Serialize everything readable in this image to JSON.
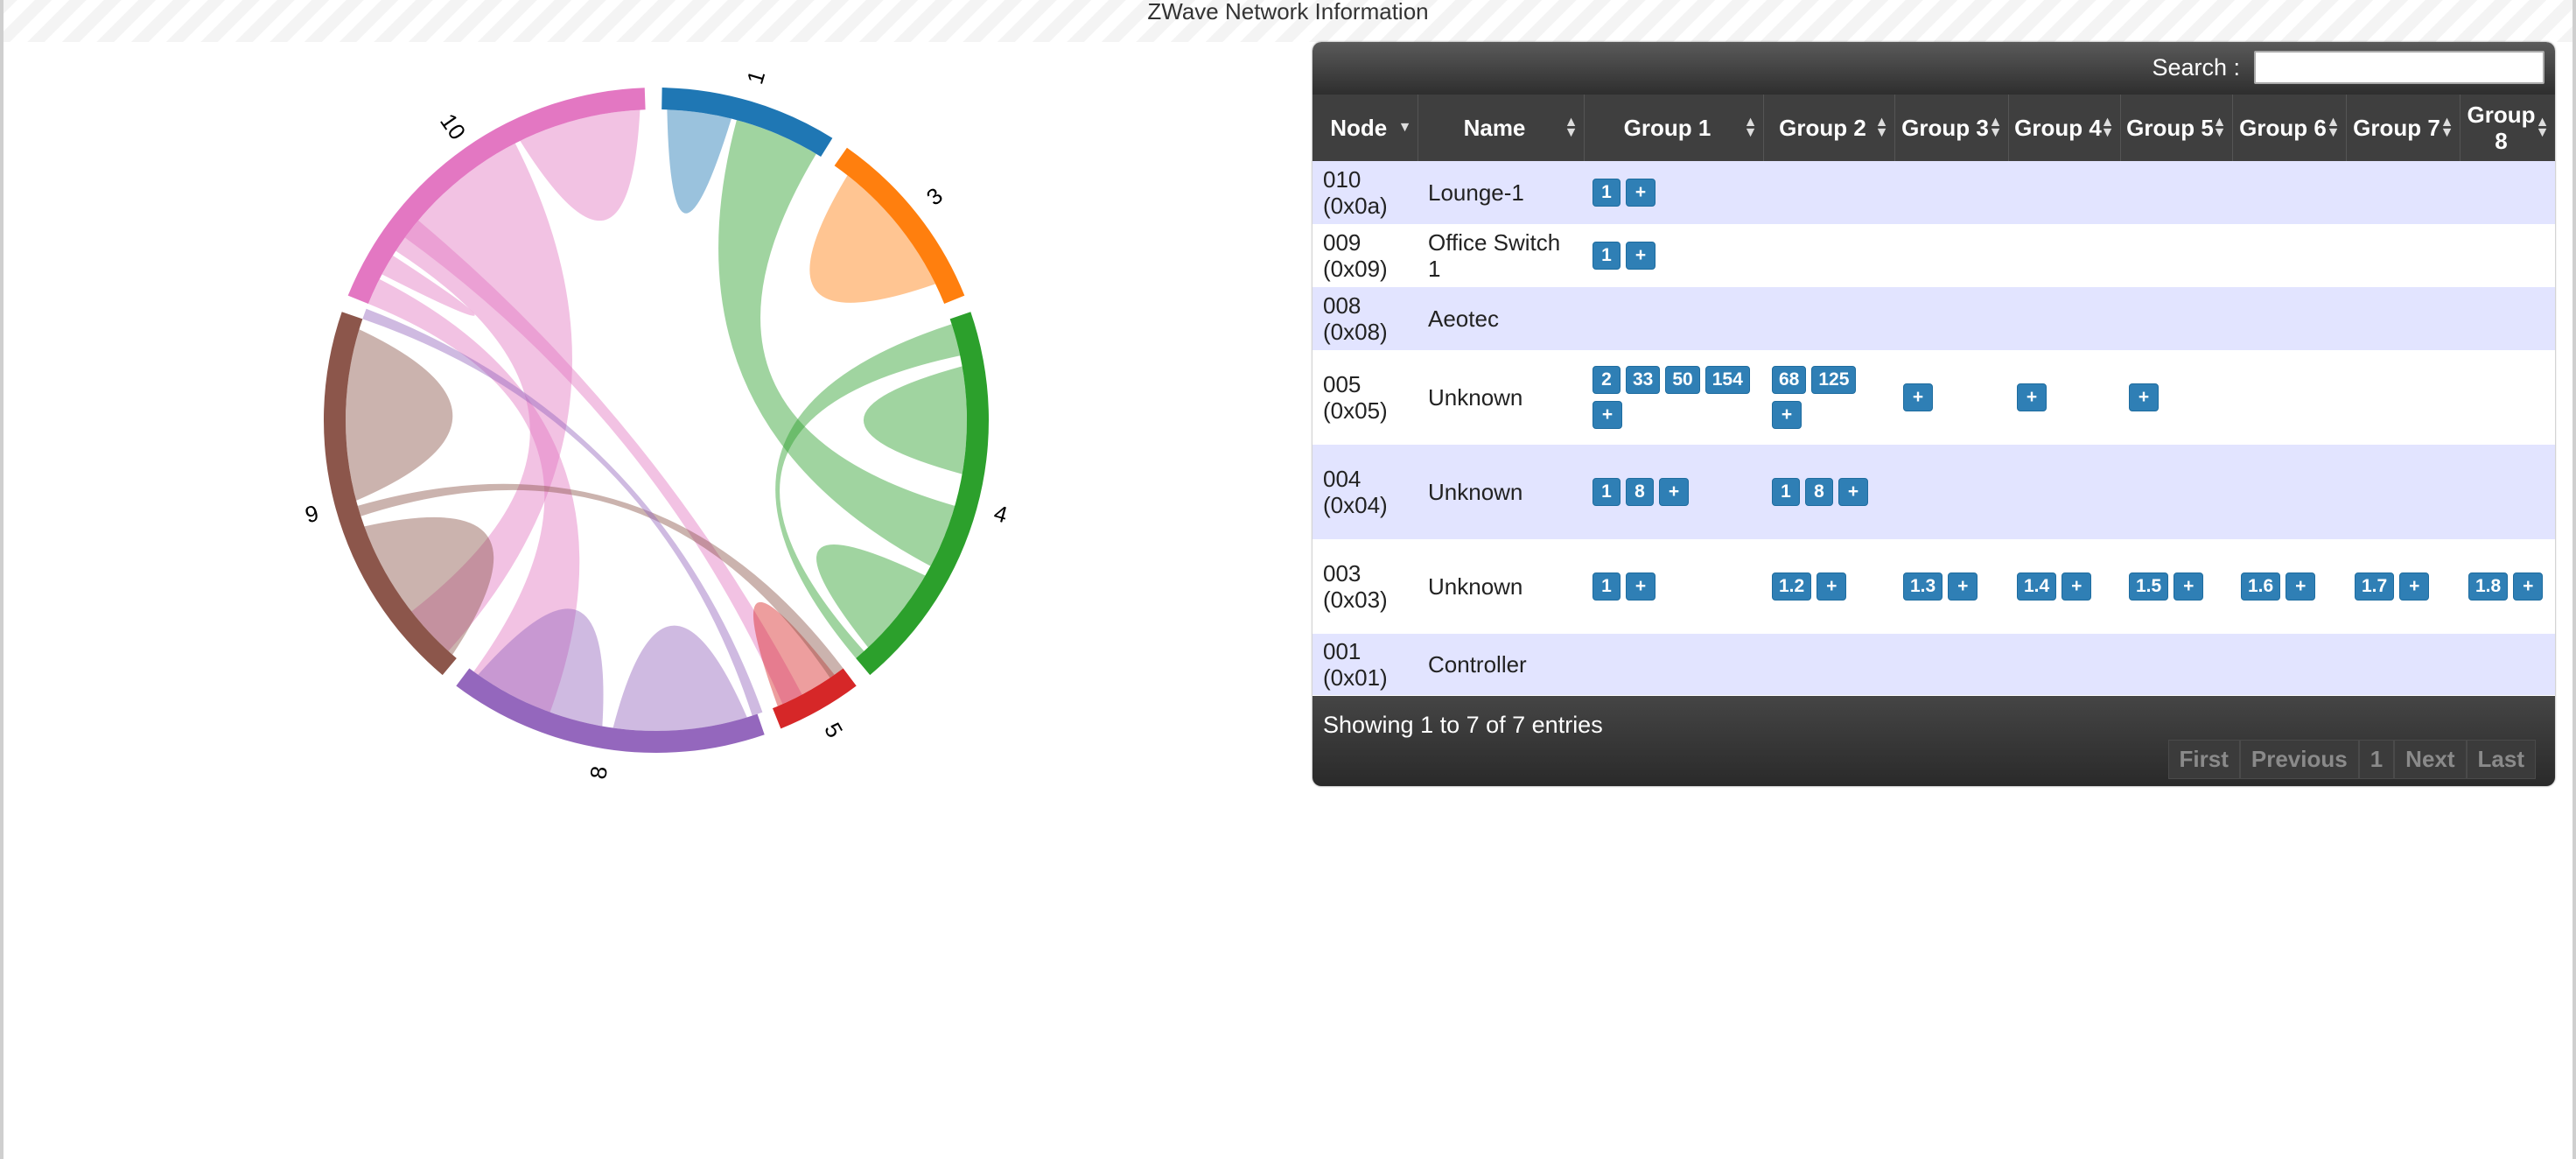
{
  "page": {
    "title": "ZWave Network Information"
  },
  "search": {
    "label": "Search :",
    "value": "",
    "placeholder": ""
  },
  "table": {
    "columns": [
      "Node",
      "Name",
      "Group 1",
      "Group 2",
      "Group 3",
      "Group 4",
      "Group 5",
      "Group 6",
      "Group 7",
      "Group 8"
    ],
    "rows": [
      {
        "node": "010",
        "hex": "(0x0a)",
        "name": "Lounge-1",
        "groups": [
          [
            "1",
            "+"
          ],
          [],
          [],
          [],
          [],
          [],
          [],
          []
        ]
      },
      {
        "node": "009",
        "hex": "(0x09)",
        "name": "Office Switch 1",
        "groups": [
          [
            "1",
            "+"
          ],
          [],
          [],
          [],
          [],
          [],
          [],
          []
        ]
      },
      {
        "node": "008",
        "hex": "(0x08)",
        "name": "Aeotec",
        "groups": [
          [],
          [],
          [],
          [],
          [],
          [],
          [],
          []
        ]
      },
      {
        "node": "005",
        "hex": "(0x05)",
        "name": "Unknown",
        "groups": [
          [
            "2",
            "33",
            "50",
            "154",
            "+"
          ],
          [
            "68",
            "125",
            "+"
          ],
          [
            "+"
          ],
          [
            "+"
          ],
          [
            "+"
          ],
          [],
          [],
          []
        ]
      },
      {
        "node": "004",
        "hex": "(0x04)",
        "name": "Unknown",
        "groups": [
          [
            "1",
            "8",
            "+"
          ],
          [
            "1",
            "8",
            "+"
          ],
          [],
          [],
          [],
          [],
          [],
          []
        ]
      },
      {
        "node": "003",
        "hex": "(0x03)",
        "name": "Unknown",
        "groups": [
          [
            "1",
            "+"
          ],
          [
            "1.2",
            "+"
          ],
          [
            "1.3",
            "+"
          ],
          [
            "1.4",
            "+"
          ],
          [
            "1.5",
            "+"
          ],
          [
            "1.6",
            "+"
          ],
          [
            "1.7",
            "+"
          ],
          [
            "1.8",
            "+"
          ]
        ]
      },
      {
        "node": "001",
        "hex": "(0x01)",
        "name": "Controller",
        "groups": [
          [],
          [],
          [],
          [],
          [],
          [],
          [],
          []
        ]
      }
    ],
    "info": "Showing 1 to 7 of 7 entries",
    "pager": [
      "First",
      "Previous",
      "1",
      "Next",
      "Last"
    ]
  },
  "chord": {
    "nodes": [
      {
        "label": "1",
        "color": "#1f77b4",
        "start": 1,
        "end": 32
      },
      {
        "label": "3",
        "color": "#ff7f0e",
        "start": 35,
        "end": 68
      },
      {
        "label": "4",
        "color": "#2ca02c",
        "start": 71,
        "end": 140
      },
      {
        "label": "5",
        "color": "#d62728",
        "start": 143,
        "end": 158
      },
      {
        "label": "8",
        "color": "#9467bd",
        "start": 161,
        "end": 217
      },
      {
        "label": "9",
        "color": "#8c564b",
        "start": 220,
        "end": 289
      },
      {
        "label": "10",
        "color": "#e377c2",
        "start": 292,
        "end": 358
      }
    ]
  }
}
